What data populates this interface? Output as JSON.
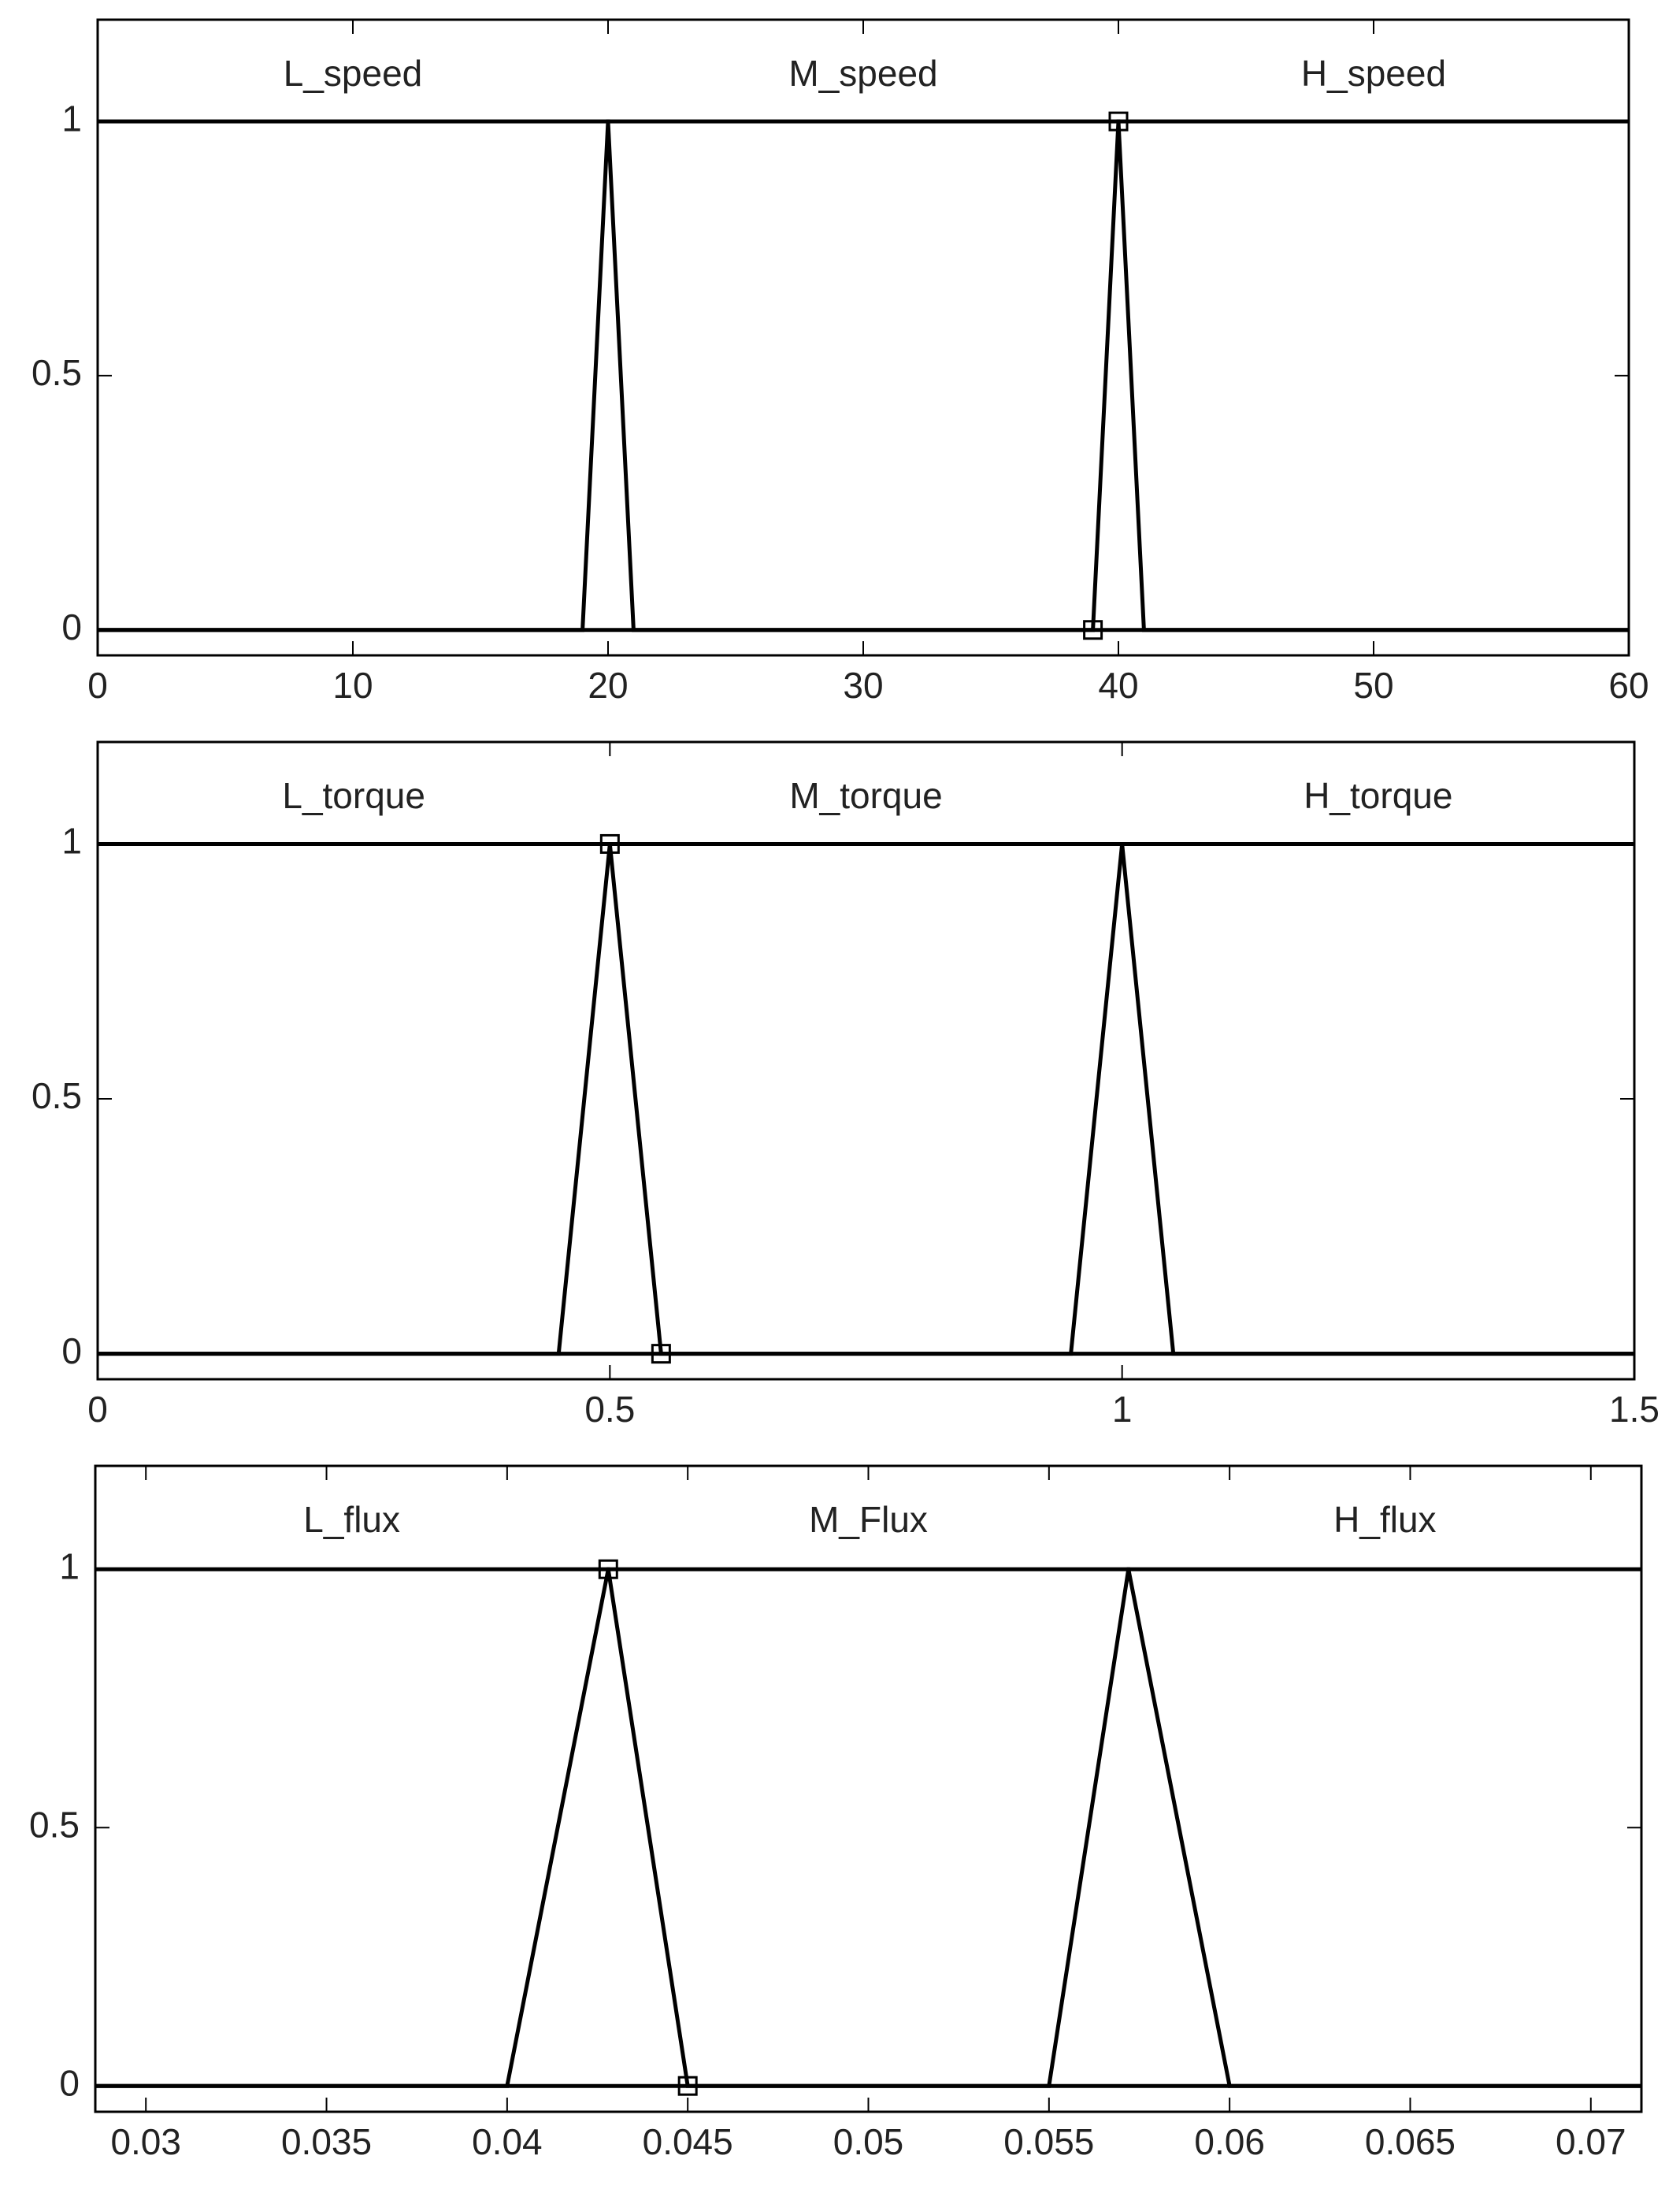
{
  "chart_data": [
    {
      "type": "line",
      "xlim": [
        0,
        60
      ],
      "ylim": [
        -0.05,
        1.2
      ],
      "xticks": [
        0,
        10,
        20,
        30,
        40,
        50,
        60
      ],
      "yticks": [
        0,
        0.5,
        1
      ],
      "series": [
        {
          "name": "L_speed",
          "color": "#000000",
          "x": [
            0,
            20,
            21,
            60
          ],
          "values": [
            1,
            1,
            0,
            0
          ]
        },
        {
          "name": "M_speed",
          "color": "#000000",
          "x": [
            0,
            19,
            20,
            40,
            41,
            60
          ],
          "values": [
            0,
            0,
            1,
            1,
            0,
            0
          ]
        },
        {
          "name": "H_speed",
          "color": "#000000",
          "x": [
            0,
            39,
            40,
            60
          ],
          "values": [
            0,
            0,
            1,
            1
          ],
          "marker": "square"
        }
      ]
    },
    {
      "type": "line",
      "xlim": [
        0,
        1.5
      ],
      "ylim": [
        -0.05,
        1.2
      ],
      "xticks": [
        0,
        0.5,
        1,
        1.5
      ],
      "yticks": [
        0,
        0.5,
        1
      ],
      "series": [
        {
          "name": "L_torque",
          "color": "#000000",
          "x": [
            0,
            0.5,
            0.55,
            1.5
          ],
          "values": [
            1,
            1,
            0,
            0
          ],
          "marker": "square"
        },
        {
          "name": "M_torque",
          "color": "#000000",
          "x": [
            0,
            0.45,
            0.5,
            1,
            1.05,
            1.5
          ],
          "values": [
            0,
            0,
            1,
            1,
            0,
            0
          ]
        },
        {
          "name": "H_torque",
          "color": "#000000",
          "x": [
            0,
            0.95,
            1,
            1.5
          ],
          "values": [
            0,
            0,
            1,
            1
          ]
        }
      ]
    },
    {
      "type": "line",
      "xlim": [
        0.0286,
        0.0714
      ],
      "ylim": [
        -0.05,
        1.2
      ],
      "xticks": [
        0.03,
        0.035,
        0.04,
        0.045,
        0.05,
        0.055,
        0.06,
        0.065,
        0.07
      ],
      "yticks": [
        0,
        0.5,
        1
      ],
      "series": [
        {
          "name": "L_flux",
          "color": "#000000",
          "x": [
            0.0286,
            0.0428,
            0.045,
            0.0714
          ],
          "values": [
            1,
            1,
            0,
            0
          ],
          "marker": "square"
        },
        {
          "name": "M_Flux",
          "color": "#000000",
          "x": [
            0.0286,
            0.04,
            0.0428,
            0.0572,
            0.06,
            0.0714
          ],
          "values": [
            0,
            0,
            1,
            1,
            0,
            0
          ]
        },
        {
          "name": "H_flux",
          "color": "#000000",
          "x": [
            0.0286,
            0.055,
            0.0572,
            0.0714
          ],
          "values": [
            0,
            0,
            1,
            1
          ]
        }
      ]
    }
  ]
}
